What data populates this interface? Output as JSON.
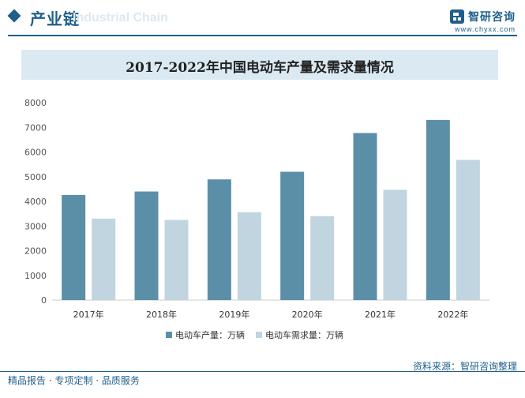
{
  "header": {
    "title": "产业链",
    "subtitle_en": "Industrial Chain",
    "brand_name": "智研咨询",
    "brand_url": "www.chyxx.com"
  },
  "colors": {
    "brand": "#1f5f8b",
    "production": "#5b8fa8",
    "demand": "#c0d5df"
  },
  "footer": {
    "left": "精品报告 · 专项定制 · 品质服务",
    "right": "资料来源：智研咨询整理"
  },
  "chart_data": {
    "type": "bar",
    "title": "2017-2022年中国电动车产量及需求量情况",
    "categories": [
      "2017年",
      "2018年",
      "2019年",
      "2020年",
      "2021年",
      "2022年"
    ],
    "series": [
      {
        "name": "电动车产量：万辆",
        "values": [
          4260,
          4400,
          4890,
          5200,
          6770,
          7300
        ]
      },
      {
        "name": "电动车需求量：万辆",
        "values": [
          3300,
          3250,
          3560,
          3400,
          4470,
          5680
        ]
      }
    ],
    "yticks": [
      0,
      1000,
      2000,
      3000,
      4000,
      5000,
      6000,
      7000,
      8000
    ],
    "ylim": [
      0,
      8000
    ],
    "grid": false,
    "legend": "bottom"
  }
}
